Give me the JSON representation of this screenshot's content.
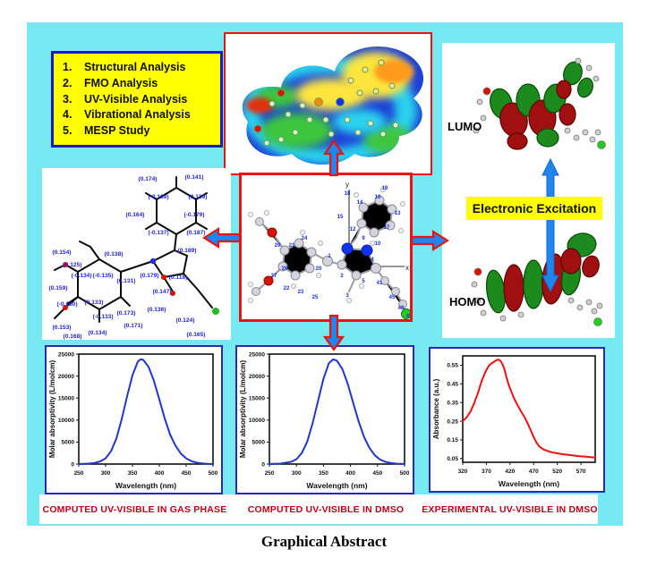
{
  "page": {
    "title": "Graphical Abstract"
  },
  "analysis_box": {
    "items": [
      {
        "num": "1.",
        "label": "Structural Analysis"
      },
      {
        "num": "2.",
        "label": "FMO Analysis"
      },
      {
        "num": "3.",
        "label": "UV-Visible Analysis"
      },
      {
        "num": "4.",
        "label": "Vibrational Analysis"
      },
      {
        "num": "5.",
        "label": "MESP Study"
      }
    ]
  },
  "excitation": {
    "label": "Electronic Excitation",
    "lumo": "LUMO",
    "homo": "HOMO"
  },
  "center_panel": {
    "x_axis": "x",
    "y_axis": "y",
    "atom_numbers": [
      "18",
      "19",
      "14",
      "16",
      "15",
      "13",
      "12",
      "17",
      "9",
      "10",
      "1",
      "2",
      "3",
      "5",
      "4",
      "24",
      "21",
      "20",
      "26",
      "23",
      "25",
      "22",
      "27",
      "29",
      "41",
      "45",
      "48",
      "49"
    ]
  },
  "left_panel": {
    "charges": [
      "(0.174)",
      "(0.141)",
      "(-0.139)",
      "(0.139)",
      "(0.164)",
      "(-0.179)",
      "(-0.137)",
      "(0.187)",
      "(0.189)",
      "(0.154)",
      "(0.125)",
      "(0.138)",
      "(-0.134)",
      "(-0.135)",
      "(0.131)",
      "(0.179)",
      "(0.118)",
      "(0.159)",
      "(0.147)",
      "(-0.160)",
      "(0.133)",
      "(-0.133)",
      "(0.173)",
      "(0.136)",
      "(0.171)",
      "(0.153)",
      "(0.134)",
      "(0.168)",
      "(0.124)",
      "(0.165)"
    ]
  },
  "captions": {
    "plot1": "COMPUTED UV-VISIBLE IN GAS PHASE",
    "plot2": "COMPUTED UV-VISIBLE IN DMSO",
    "plot3": "EXPERIMENTAL UV-VISIBLE IN DMSO"
  },
  "chart_data": [
    {
      "type": "line",
      "title": "Computed UV-Visible in gas phase",
      "xlabel": "Wavelength (nm)",
      "ylabel": "Molar absorptivity (L/molcm)",
      "xlim": [
        250,
        500
      ],
      "ylim": [
        0,
        25000
      ],
      "xticks": [
        250,
        300,
        350,
        400,
        450,
        500
      ],
      "xtick_labels": [
        "250",
        "300",
        "350",
        "400",
        "450",
        "500"
      ],
      "yticks": [
        0,
        5000,
        10000,
        15000,
        20000,
        25000
      ],
      "ytick_labels": [
        "0",
        "5000",
        "10000",
        "15000",
        "20000",
        "25000"
      ],
      "color": "#2236C8",
      "legend": null,
      "grid": false,
      "series": [
        {
          "name": "computed gas phase",
          "points": [
            [
              250,
              30
            ],
            [
              260,
              60
            ],
            [
              270,
              120
            ],
            [
              280,
              260
            ],
            [
              290,
              600
            ],
            [
              300,
              1300
            ],
            [
              310,
              2900
            ],
            [
              320,
              5800
            ],
            [
              330,
              10200
            ],
            [
              340,
              15400
            ],
            [
              350,
              20200
            ],
            [
              360,
              23300
            ],
            [
              365,
              23800
            ],
            [
              370,
              23700
            ],
            [
              380,
              22100
            ],
            [
              390,
              18900
            ],
            [
              400,
              14700
            ],
            [
              410,
              10400
            ],
            [
              420,
              6700
            ],
            [
              430,
              4200
            ],
            [
              440,
              2400
            ],
            [
              450,
              1300
            ],
            [
              460,
              650
            ],
            [
              470,
              300
            ],
            [
              480,
              140
            ],
            [
              490,
              60
            ],
            [
              500,
              30
            ]
          ]
        }
      ]
    },
    {
      "type": "line",
      "title": "Computed UV-Visible in DMSO",
      "xlabel": "Wavelength (nm)",
      "ylabel": "Molar absorptivity (L/molcm)",
      "xlim": [
        250,
        500
      ],
      "ylim": [
        0,
        25000
      ],
      "xticks": [
        250,
        300,
        350,
        400,
        450,
        500
      ],
      "xtick_labels": [
        "250",
        "300",
        "350",
        "400",
        "450",
        "500"
      ],
      "yticks": [
        0,
        5000,
        10000,
        15000,
        20000,
        25000
      ],
      "ytick_labels": [
        "0",
        "5000",
        "10000",
        "15000",
        "20000",
        "25000"
      ],
      "color": "#2236C8",
      "legend": null,
      "grid": false,
      "series": [
        {
          "name": "computed DMSO",
          "points": [
            [
              250,
              30
            ],
            [
              270,
              100
            ],
            [
              290,
              500
            ],
            [
              300,
              1100
            ],
            [
              310,
              2500
            ],
            [
              320,
              5100
            ],
            [
              330,
              9300
            ],
            [
              340,
              14400
            ],
            [
              350,
              19400
            ],
            [
              360,
              22900
            ],
            [
              368,
              23800
            ],
            [
              375,
              23500
            ],
            [
              385,
              21600
            ],
            [
              395,
              18200
            ],
            [
              405,
              13900
            ],
            [
              415,
              9700
            ],
            [
              425,
              6200
            ],
            [
              435,
              3700
            ],
            [
              445,
              2000
            ],
            [
              455,
              1000
            ],
            [
              465,
              480
            ],
            [
              475,
              220
            ],
            [
              485,
              100
            ],
            [
              495,
              45
            ],
            [
              500,
              30
            ]
          ]
        }
      ]
    },
    {
      "type": "line",
      "title": "Experimental UV-Visible in DMSO",
      "xlabel": "Wavelength (nm)",
      "ylabel": "Absorbance (a.u.)",
      "xlim": [
        320,
        600
      ],
      "ylim": [
        0.03,
        0.6
      ],
      "xticks": [
        320,
        370,
        420,
        470,
        520,
        570
      ],
      "xtick_labels": [
        "320",
        "370",
        "420",
        "470",
        "520",
        "570"
      ],
      "yticks": [
        0.05,
        0.15,
        0.25,
        0.35,
        0.45,
        0.55
      ],
      "ytick_labels": [
        "0.05",
        "0.15",
        "0.25",
        "0.35",
        "0.45",
        "0.55"
      ],
      "color": "#EE1111",
      "legend": null,
      "grid": false,
      "series": [
        {
          "name": "experimental DMSO",
          "points": [
            [
              320,
              0.25
            ],
            [
              328,
              0.27
            ],
            [
              336,
              0.3
            ],
            [
              344,
              0.345
            ],
            [
              352,
              0.4
            ],
            [
              360,
              0.465
            ],
            [
              368,
              0.515
            ],
            [
              376,
              0.55
            ],
            [
              384,
              0.565
            ],
            [
              392,
              0.578
            ],
            [
              396,
              0.58
            ],
            [
              400,
              0.572
            ],
            [
              404,
              0.555
            ],
            [
              408,
              0.53
            ],
            [
              412,
              0.49
            ],
            [
              416,
              0.455
            ],
            [
              420,
              0.425
            ],
            [
              428,
              0.375
            ],
            [
              436,
              0.335
            ],
            [
              444,
              0.3
            ],
            [
              452,
              0.265
            ],
            [
              458,
              0.235
            ],
            [
              464,
              0.2
            ],
            [
              470,
              0.165
            ],
            [
              476,
              0.135
            ],
            [
              482,
              0.115
            ],
            [
              490,
              0.1
            ],
            [
              500,
              0.09
            ],
            [
              510,
              0.082
            ],
            [
              520,
              0.078
            ],
            [
              535,
              0.072
            ],
            [
              550,
              0.068
            ],
            [
              565,
              0.063
            ],
            [
              580,
              0.06
            ],
            [
              600,
              0.055
            ]
          ]
        }
      ]
    }
  ],
  "colors": {
    "background": "#76E9F3",
    "panel_red_border": "#F01010",
    "plot_border": "#2A2AB0",
    "caption_red": "#C00018",
    "curve_blue": "#2236C8",
    "curve_red": "#EE1111",
    "highlight_yellow": "#FFFF00",
    "list_border_blue": "#1A1ACC",
    "arrow_blue": "#1E86EC",
    "arrow_red_outline": "#F01010"
  }
}
